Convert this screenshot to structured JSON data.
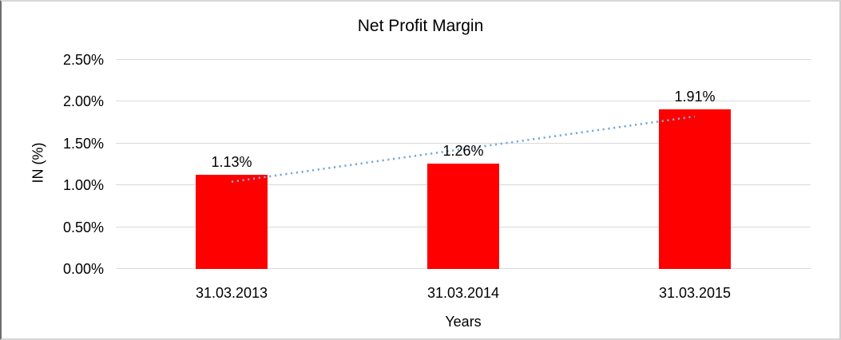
{
  "chart_data": {
    "type": "bar",
    "title": "Net Profit Margin",
    "xlabel": "Years",
    "ylabel": "IN (%)",
    "categories": [
      "31.03.2013",
      "31.03.2014",
      "31.03.2015"
    ],
    "values": [
      1.13,
      1.26,
      1.91
    ],
    "data_labels": [
      "1.13%",
      "1.26%",
      "1.91%"
    ],
    "ylim": [
      0,
      2.5
    ],
    "yticks": [
      0,
      0.5,
      1.0,
      1.5,
      2.0,
      2.5
    ],
    "ytick_labels": [
      "0.00%",
      "0.50%",
      "1.00%",
      "1.50%",
      "2.00%",
      "2.50%"
    ],
    "grid": true,
    "legend": "none",
    "bar_color": "#ff0000",
    "trendline": {
      "type": "linear",
      "style": "dotted",
      "color": "#74a9d8"
    }
  }
}
